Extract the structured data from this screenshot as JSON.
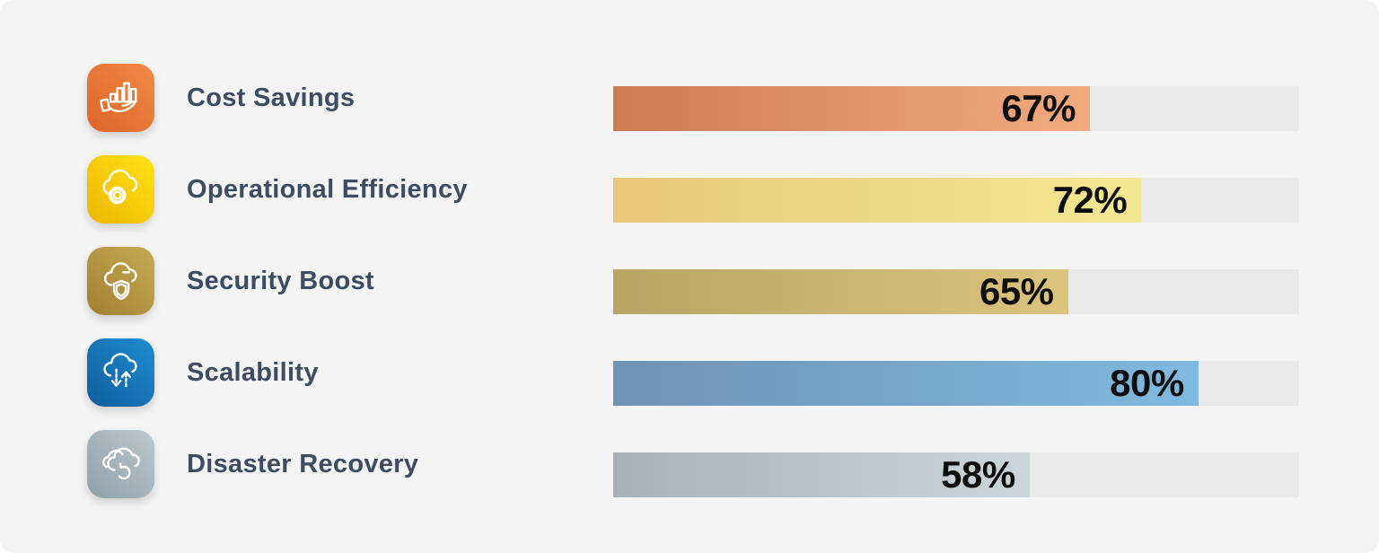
{
  "colors": {
    "background": "#f4f4f4",
    "track": "#e9e9e9",
    "label_text": "#3d4b63",
    "value_text": "#0d0d0d"
  },
  "chart_data": {
    "type": "bar",
    "orientation": "horizontal",
    "title": "",
    "xlabel": "",
    "ylabel": "",
    "xlim": [
      0,
      100
    ],
    "grid": false,
    "legend": false,
    "categories": [
      "Cost Savings",
      "Operational Efficiency",
      "Security Boost",
      "Scalability",
      "Disaster Recovery"
    ],
    "values": [
      67,
      72,
      65,
      80,
      58
    ],
    "value_labels": [
      "67%",
      "72%",
      "65%",
      "80%",
      "58%"
    ],
    "rows": [
      {
        "label": "Cost Savings",
        "value": 67,
        "value_label": "67%",
        "icon": "hand-holding-bar-chart-icon",
        "icon_gradient": [
          "#dd6527",
          "#f28a45"
        ],
        "bar_gradient": [
          "#ce7a52",
          "#f2aa7e"
        ],
        "fill_percent_visual": 69.5
      },
      {
        "label": "Operational Efficiency",
        "value": 72,
        "value_label": "72%",
        "icon": "cloud-gear-icon",
        "icon_gradient": [
          "#edb502",
          "#ffe312"
        ],
        "bar_gradient": [
          "#e8c77a",
          "#f3e892"
        ],
        "fill_percent_visual": 77
      },
      {
        "label": "Security Boost",
        "value": 65,
        "value_label": "65%",
        "icon": "cloud-shield-icon",
        "icon_gradient": [
          "#a28033",
          "#c5aa53"
        ],
        "bar_gradient": [
          "#b7a565",
          "#dcc47d"
        ],
        "fill_percent_visual": 66.3
      },
      {
        "label": "Scalability",
        "value": 80,
        "value_label": "80%",
        "icon": "cloud-scale-arrows-icon",
        "icon_gradient": [
          "#0f5e9c",
          "#1e8dd0"
        ],
        "bar_gradient": [
          "#6e93b4",
          "#7fb9e0"
        ],
        "fill_percent_visual": 85.3
      },
      {
        "label": "Disaster Recovery",
        "value": 58,
        "value_label": "58%",
        "icon": "cloud-recovery-icon",
        "icon_gradient": [
          "#8fa0a9",
          "#bcc9cf"
        ],
        "bar_gradient": [
          "#a8b1b5",
          "#ccd5da"
        ],
        "fill_percent_visual": 60.7
      }
    ]
  }
}
